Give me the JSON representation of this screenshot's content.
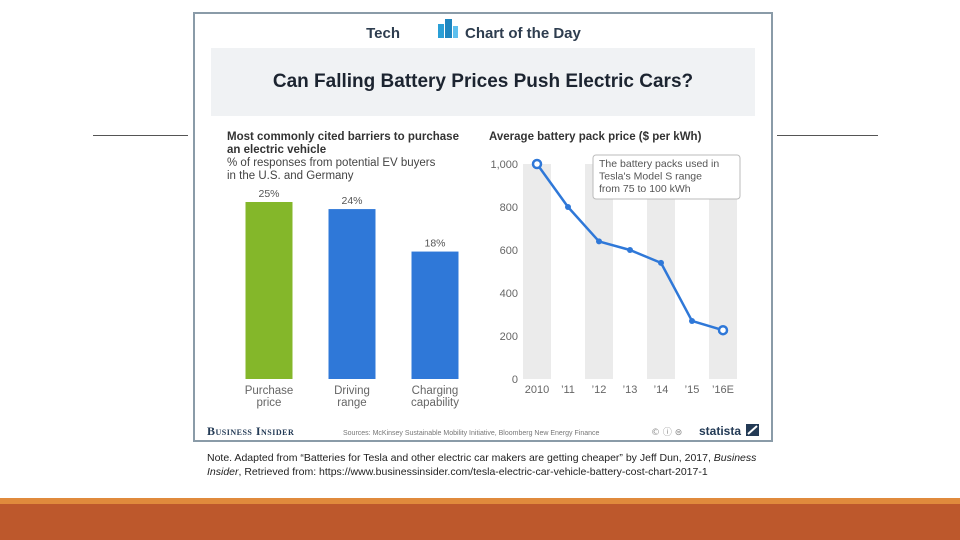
{
  "header": {
    "brand_left": "Tech",
    "brand_right": "Chart of the Day",
    "title": "Can Falling Battery Prices Push Electric Cars?"
  },
  "colors": {
    "green_bar": "#84b72a",
    "blue": "#2f78d8",
    "shade": "#ebebeb",
    "title_band": "#f0f2f4",
    "slide_bar": "#bd582c"
  },
  "footer": {
    "brand": "Business Insider",
    "sources": "Sources: McKinsey Sustainable Mobility Initiative, Bloomberg New Energy Finance",
    "cc_icons": "© ⓘ ⊜",
    "statista": "statista"
  },
  "note": {
    "prefix": "Note. Adapted from “Batteries for Tesla and other electric car makers are getting cheaper” by Jeff Dun, 2017, ",
    "publication": "Business Insider",
    "suffix": ", Retrieved from: https://www.businessinsider.com/tesla-electric-car-vehicle-battery-cost-chart-2017-1"
  },
  "chart_data": [
    {
      "type": "bar",
      "title_lines": [
        "Most commonly cited barriers to purchase",
        "an electric vehicle"
      ],
      "subtitle_lines": [
        "% of responses from potential EV buyers",
        "in the U.S. and Germany"
      ],
      "categories": [
        [
          "Purchase",
          "price"
        ],
        [
          "Driving",
          "range"
        ],
        [
          "Charging",
          "capability"
        ]
      ],
      "values": [
        25,
        24,
        18
      ],
      "value_labels": [
        "25%",
        "24%",
        "18%"
      ],
      "colors": [
        "#84b72a",
        "#2f78d8",
        "#2f78d8"
      ],
      "ylim": [
        0,
        25
      ]
    },
    {
      "type": "line",
      "title": "Average battery pack price ($ per kWh)",
      "x": [
        "2010",
        "’11",
        "’12",
        "’13",
        "’14",
        "’15",
        "’16E"
      ],
      "values": [
        1000,
        800,
        640,
        600,
        540,
        270,
        227
      ],
      "y_ticks": [
        "0",
        "200",
        "400",
        "600",
        "800",
        "1,000"
      ],
      "ylim": [
        0,
        1000
      ],
      "annotation_lines": [
        "The battery packs used in",
        "Tesla's Model S range",
        "from 75 to 100 kWh"
      ]
    }
  ]
}
